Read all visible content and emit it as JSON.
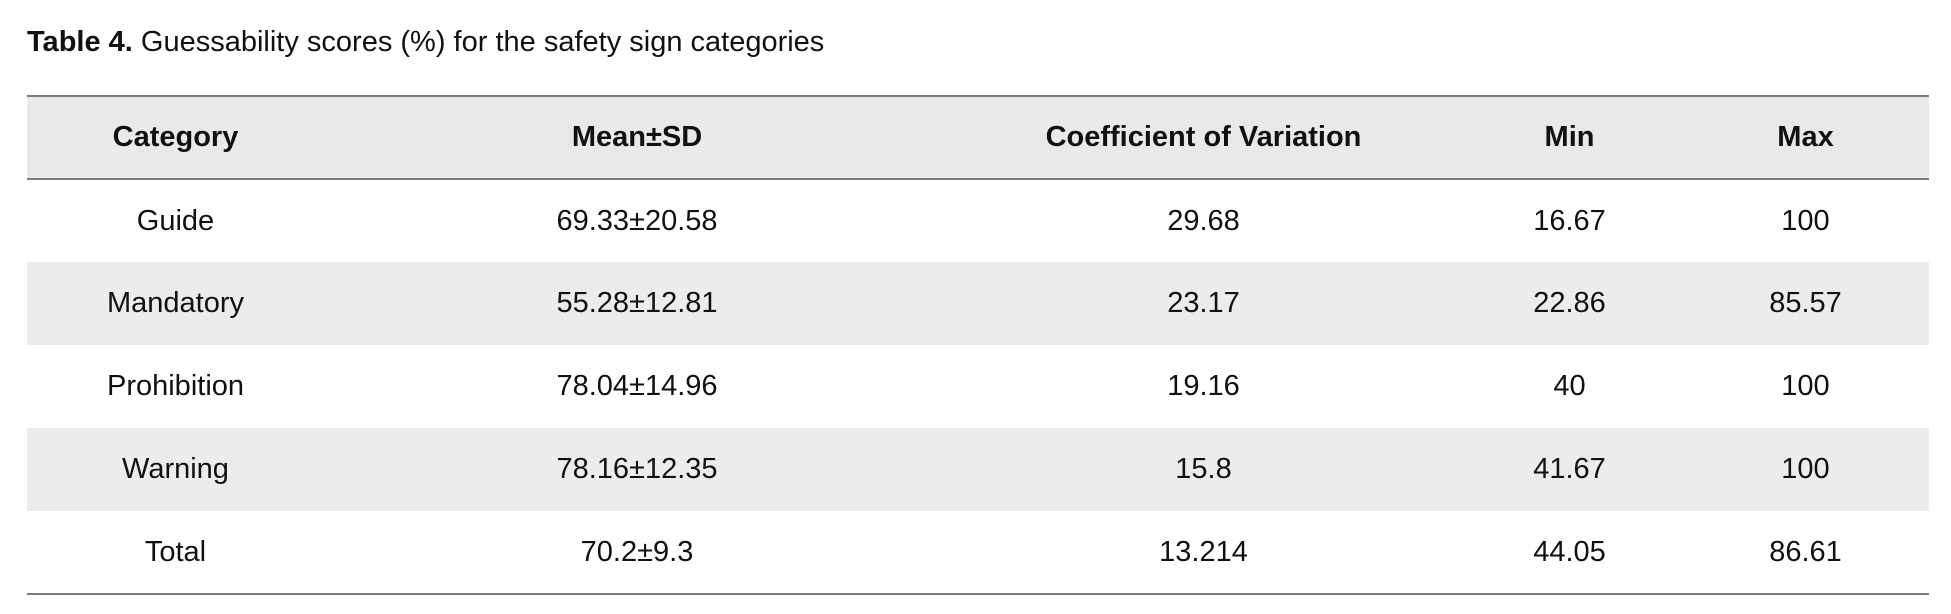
{
  "caption": {
    "label": "Table 4.",
    "text": "Guessability scores (%) for the safety sign categories"
  },
  "table": {
    "headers": [
      "Category",
      "Mean±SD",
      "Coefficient of Variation",
      "Min",
      "Max"
    ],
    "rows": [
      [
        "Guide",
        "69.33±20.58",
        "29.68",
        "16.67",
        "100"
      ],
      [
        "Mandatory",
        "55.28±12.81",
        "23.17",
        "22.86",
        "85.57"
      ],
      [
        "Prohibition",
        "78.04±14.96",
        "19.16",
        "40",
        "100"
      ],
      [
        "Warning",
        "78.16±12.35",
        "15.8",
        "41.67",
        "100"
      ],
      [
        "Total",
        "70.2±9.3",
        "13.214",
        "44.05",
        "86.61"
      ]
    ],
    "shaded_row_color": "#ebecee",
    "header_color": "#e8e9eb",
    "rule_color": "#7c7c7c"
  }
}
